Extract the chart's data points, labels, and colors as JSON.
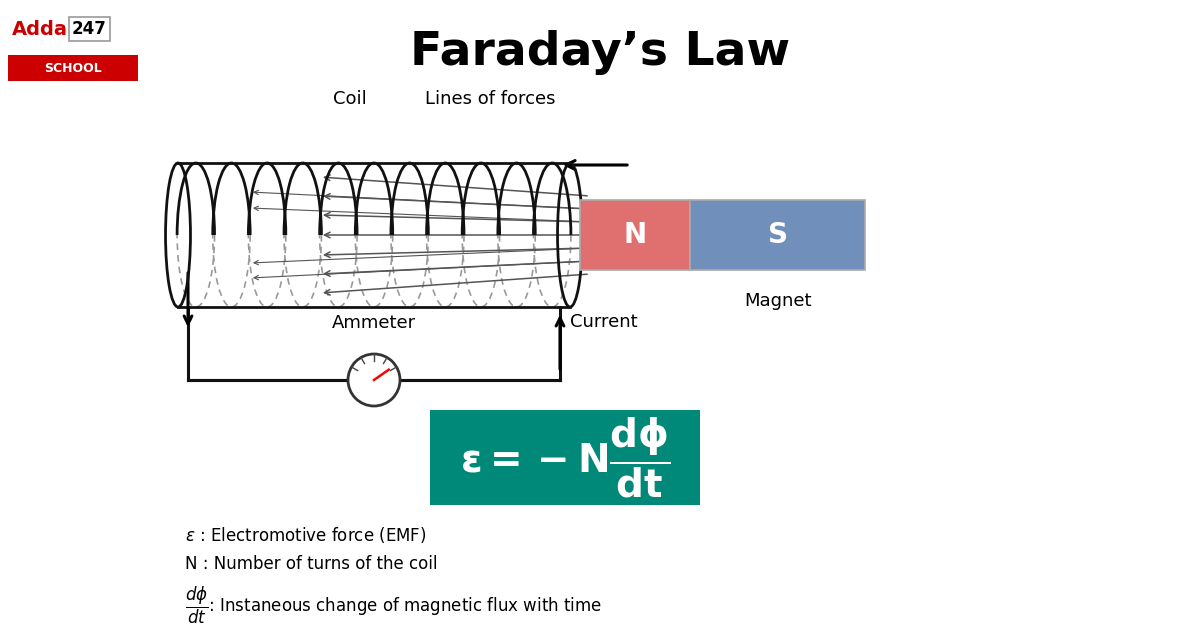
{
  "title": "Faraday’s Law",
  "title_fontsize": 34,
  "bg_color": "#ffffff",
  "magnet_N_color": "#e07070",
  "magnet_S_color": "#7090bb",
  "coil_color": "#111111",
  "circuit_color": "#111111",
  "field_line_color": "#555555",
  "label_coil": "Coil",
  "label_lines": "Lines of forces",
  "label_ammeter": "Ammeter",
  "label_current": "Current",
  "label_magnet": "Magnet",
  "label_N": "N",
  "label_S": "S",
  "formula_bg": "#008878",
  "adda_red": "#cc0000"
}
